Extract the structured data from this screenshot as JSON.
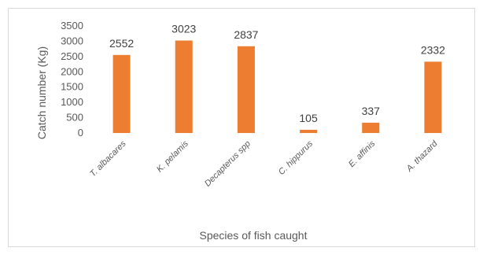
{
  "chart_data": {
    "type": "bar",
    "title": "",
    "xlabel": "Species of fish caught",
    "ylabel": "Catch number (Kg)",
    "categories": [
      "T. albacares",
      "K. pelamis",
      "Decapterus spp",
      "C. hippurus",
      "E. affinis",
      "A. thazard"
    ],
    "values": [
      2552,
      3023,
      2837,
      105,
      337,
      2332
    ],
    "data_labels": [
      "2552",
      "3023",
      "2837",
      "105",
      "337",
      "2332"
    ],
    "ylim": [
      0,
      3500
    ],
    "yticks": [
      "0",
      "500",
      "1000",
      "1500",
      "2000",
      "2500",
      "3000",
      "3500"
    ],
    "grid": false,
    "legend": "none",
    "bar_color": "#ED7D31"
  }
}
